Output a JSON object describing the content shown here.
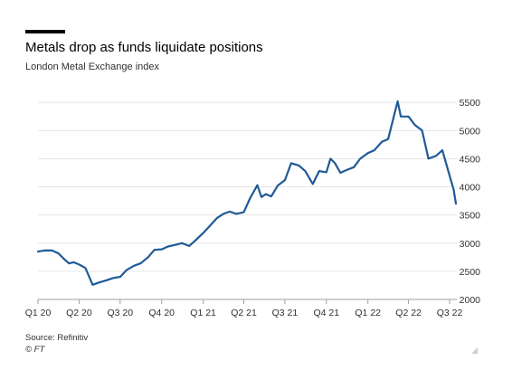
{
  "header": {
    "title": "Metals drop as funds liquidate positions",
    "subtitle": "London Metal Exchange index"
  },
  "footer": {
    "source": "Source: Refinitiv",
    "copyright": "© FT"
  },
  "chart_data": {
    "type": "line",
    "title": "Metals drop as funds liquidate positions",
    "subtitle": "London Metal Exchange index",
    "xlabel": "",
    "ylabel": "",
    "x_tick_labels": [
      "Q1 20",
      "Q2 20",
      "Q3 20",
      "Q4 20",
      "Q1 21",
      "Q2 21",
      "Q3 21",
      "Q4 21",
      "Q1 22",
      "Q2 22",
      "Q3 22"
    ],
    "y_ticks": [
      2000,
      2500,
      3000,
      3500,
      4000,
      4500,
      5000,
      5500
    ],
    "ylim": [
      2000,
      5600
    ],
    "grid": true,
    "y_axis_side": "right",
    "line_color": "#1f5a96",
    "series": [
      {
        "x": [
          "2020-01-01",
          "2020-01-15",
          "2020-02-01",
          "2020-02-15",
          "2020-03-01",
          "2020-03-10",
          "2020-03-20",
          "2020-04-01",
          "2020-04-15",
          "2020-05-01",
          "2020-05-15",
          "2020-06-01",
          "2020-06-15",
          "2020-07-01",
          "2020-07-15",
          "2020-08-01",
          "2020-08-15",
          "2020-09-01",
          "2020-09-15",
          "2020-10-01",
          "2020-10-15",
          "2020-11-01",
          "2020-11-15",
          "2020-12-01",
          "2020-12-15",
          "2021-01-01",
          "2021-01-15",
          "2021-02-01",
          "2021-02-15",
          "2021-03-01",
          "2021-03-15",
          "2021-04-01",
          "2021-04-15",
          "2021-05-01",
          "2021-05-10",
          "2021-05-20",
          "2021-06-01",
          "2021-06-15",
          "2021-07-01",
          "2021-07-15",
          "2021-08-01",
          "2021-08-15",
          "2021-09-01",
          "2021-09-15",
          "2021-10-01",
          "2021-10-10",
          "2021-10-20",
          "2021-11-01",
          "2021-11-15",
          "2021-12-01",
          "2021-12-15",
          "2022-01-01",
          "2022-01-15",
          "2022-02-01",
          "2022-02-15",
          "2022-03-01",
          "2022-03-08",
          "2022-03-15",
          "2022-04-01",
          "2022-04-15",
          "2022-05-01",
          "2022-05-15",
          "2022-06-01",
          "2022-06-15",
          "2022-07-01",
          "2022-07-10",
          "2022-07-15"
        ],
        "values": [
          2850,
          2870,
          2870,
          2820,
          2700,
          2640,
          2660,
          2620,
          2560,
          2260,
          2300,
          2340,
          2380,
          2400,
          2520,
          2600,
          2640,
          2750,
          2880,
          2890,
          2940,
          2970,
          3000,
          2950,
          3050,
          3180,
          3300,
          3450,
          3520,
          3560,
          3520,
          3550,
          3800,
          4030,
          3820,
          3870,
          3830,
          4020,
          4120,
          4420,
          4380,
          4280,
          4050,
          4280,
          4260,
          4500,
          4420,
          4250,
          4300,
          4350,
          4500,
          4600,
          4650,
          4800,
          4850,
          5300,
          5520,
          5250,
          5250,
          5100,
          5000,
          4500,
          4550,
          4650,
          4200,
          3950,
          3700
        ]
      }
    ]
  }
}
